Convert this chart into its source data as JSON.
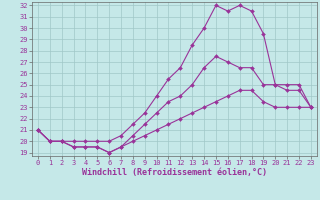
{
  "xlabel": "Windchill (Refroidissement éolien,°C)",
  "background_color": "#c5e8e8",
  "grid_color": "#a0c8c8",
  "line_color": "#993399",
  "xlim": [
    -0.5,
    23.5
  ],
  "ylim": [
    18.7,
    32.3
  ],
  "yticks": [
    19,
    20,
    21,
    22,
    23,
    24,
    25,
    26,
    27,
    28,
    29,
    30,
    31,
    32
  ],
  "xticks": [
    0,
    1,
    2,
    3,
    4,
    5,
    6,
    7,
    8,
    9,
    10,
    11,
    12,
    13,
    14,
    15,
    16,
    17,
    18,
    19,
    20,
    21,
    22,
    23
  ],
  "line1_x": [
    0,
    1,
    2,
    3,
    4,
    5,
    6,
    7,
    8,
    9,
    10,
    11,
    12,
    13,
    14,
    15,
    16,
    17,
    18,
    19,
    20,
    21,
    22,
    23
  ],
  "line1_y": [
    21.0,
    20.0,
    20.0,
    19.5,
    19.5,
    19.5,
    19.0,
    19.5,
    20.5,
    21.5,
    22.5,
    23.5,
    24.0,
    25.0,
    26.5,
    27.5,
    27.0,
    26.5,
    26.5,
    25.0,
    25.0,
    25.0,
    25.0,
    23.0
  ],
  "line2_x": [
    0,
    1,
    2,
    3,
    4,
    5,
    6,
    7,
    8,
    9,
    10,
    11,
    12,
    13,
    14,
    15,
    16,
    17,
    18,
    19,
    20,
    21,
    22,
    23
  ],
  "line2_y": [
    21.0,
    20.0,
    20.0,
    20.0,
    20.0,
    20.0,
    20.0,
    20.5,
    21.5,
    22.5,
    24.0,
    25.5,
    26.5,
    28.5,
    30.0,
    32.0,
    31.5,
    32.0,
    31.5,
    29.5,
    25.0,
    24.5,
    24.5,
    23.0
  ],
  "line3_x": [
    0,
    1,
    2,
    3,
    4,
    5,
    6,
    7,
    8,
    9,
    10,
    11,
    12,
    13,
    14,
    15,
    16,
    17,
    18,
    19,
    20,
    21,
    22,
    23
  ],
  "line3_y": [
    21.0,
    20.0,
    20.0,
    19.5,
    19.5,
    19.5,
    19.0,
    19.5,
    20.0,
    20.5,
    21.0,
    21.5,
    22.0,
    22.5,
    23.0,
    23.5,
    24.0,
    24.5,
    24.5,
    23.5,
    23.0,
    23.0,
    23.0,
    23.0
  ],
  "marker": "D",
  "markersize": 2.0,
  "linewidth": 0.8,
  "tick_fontsize": 5.0,
  "label_fontsize": 6.0
}
